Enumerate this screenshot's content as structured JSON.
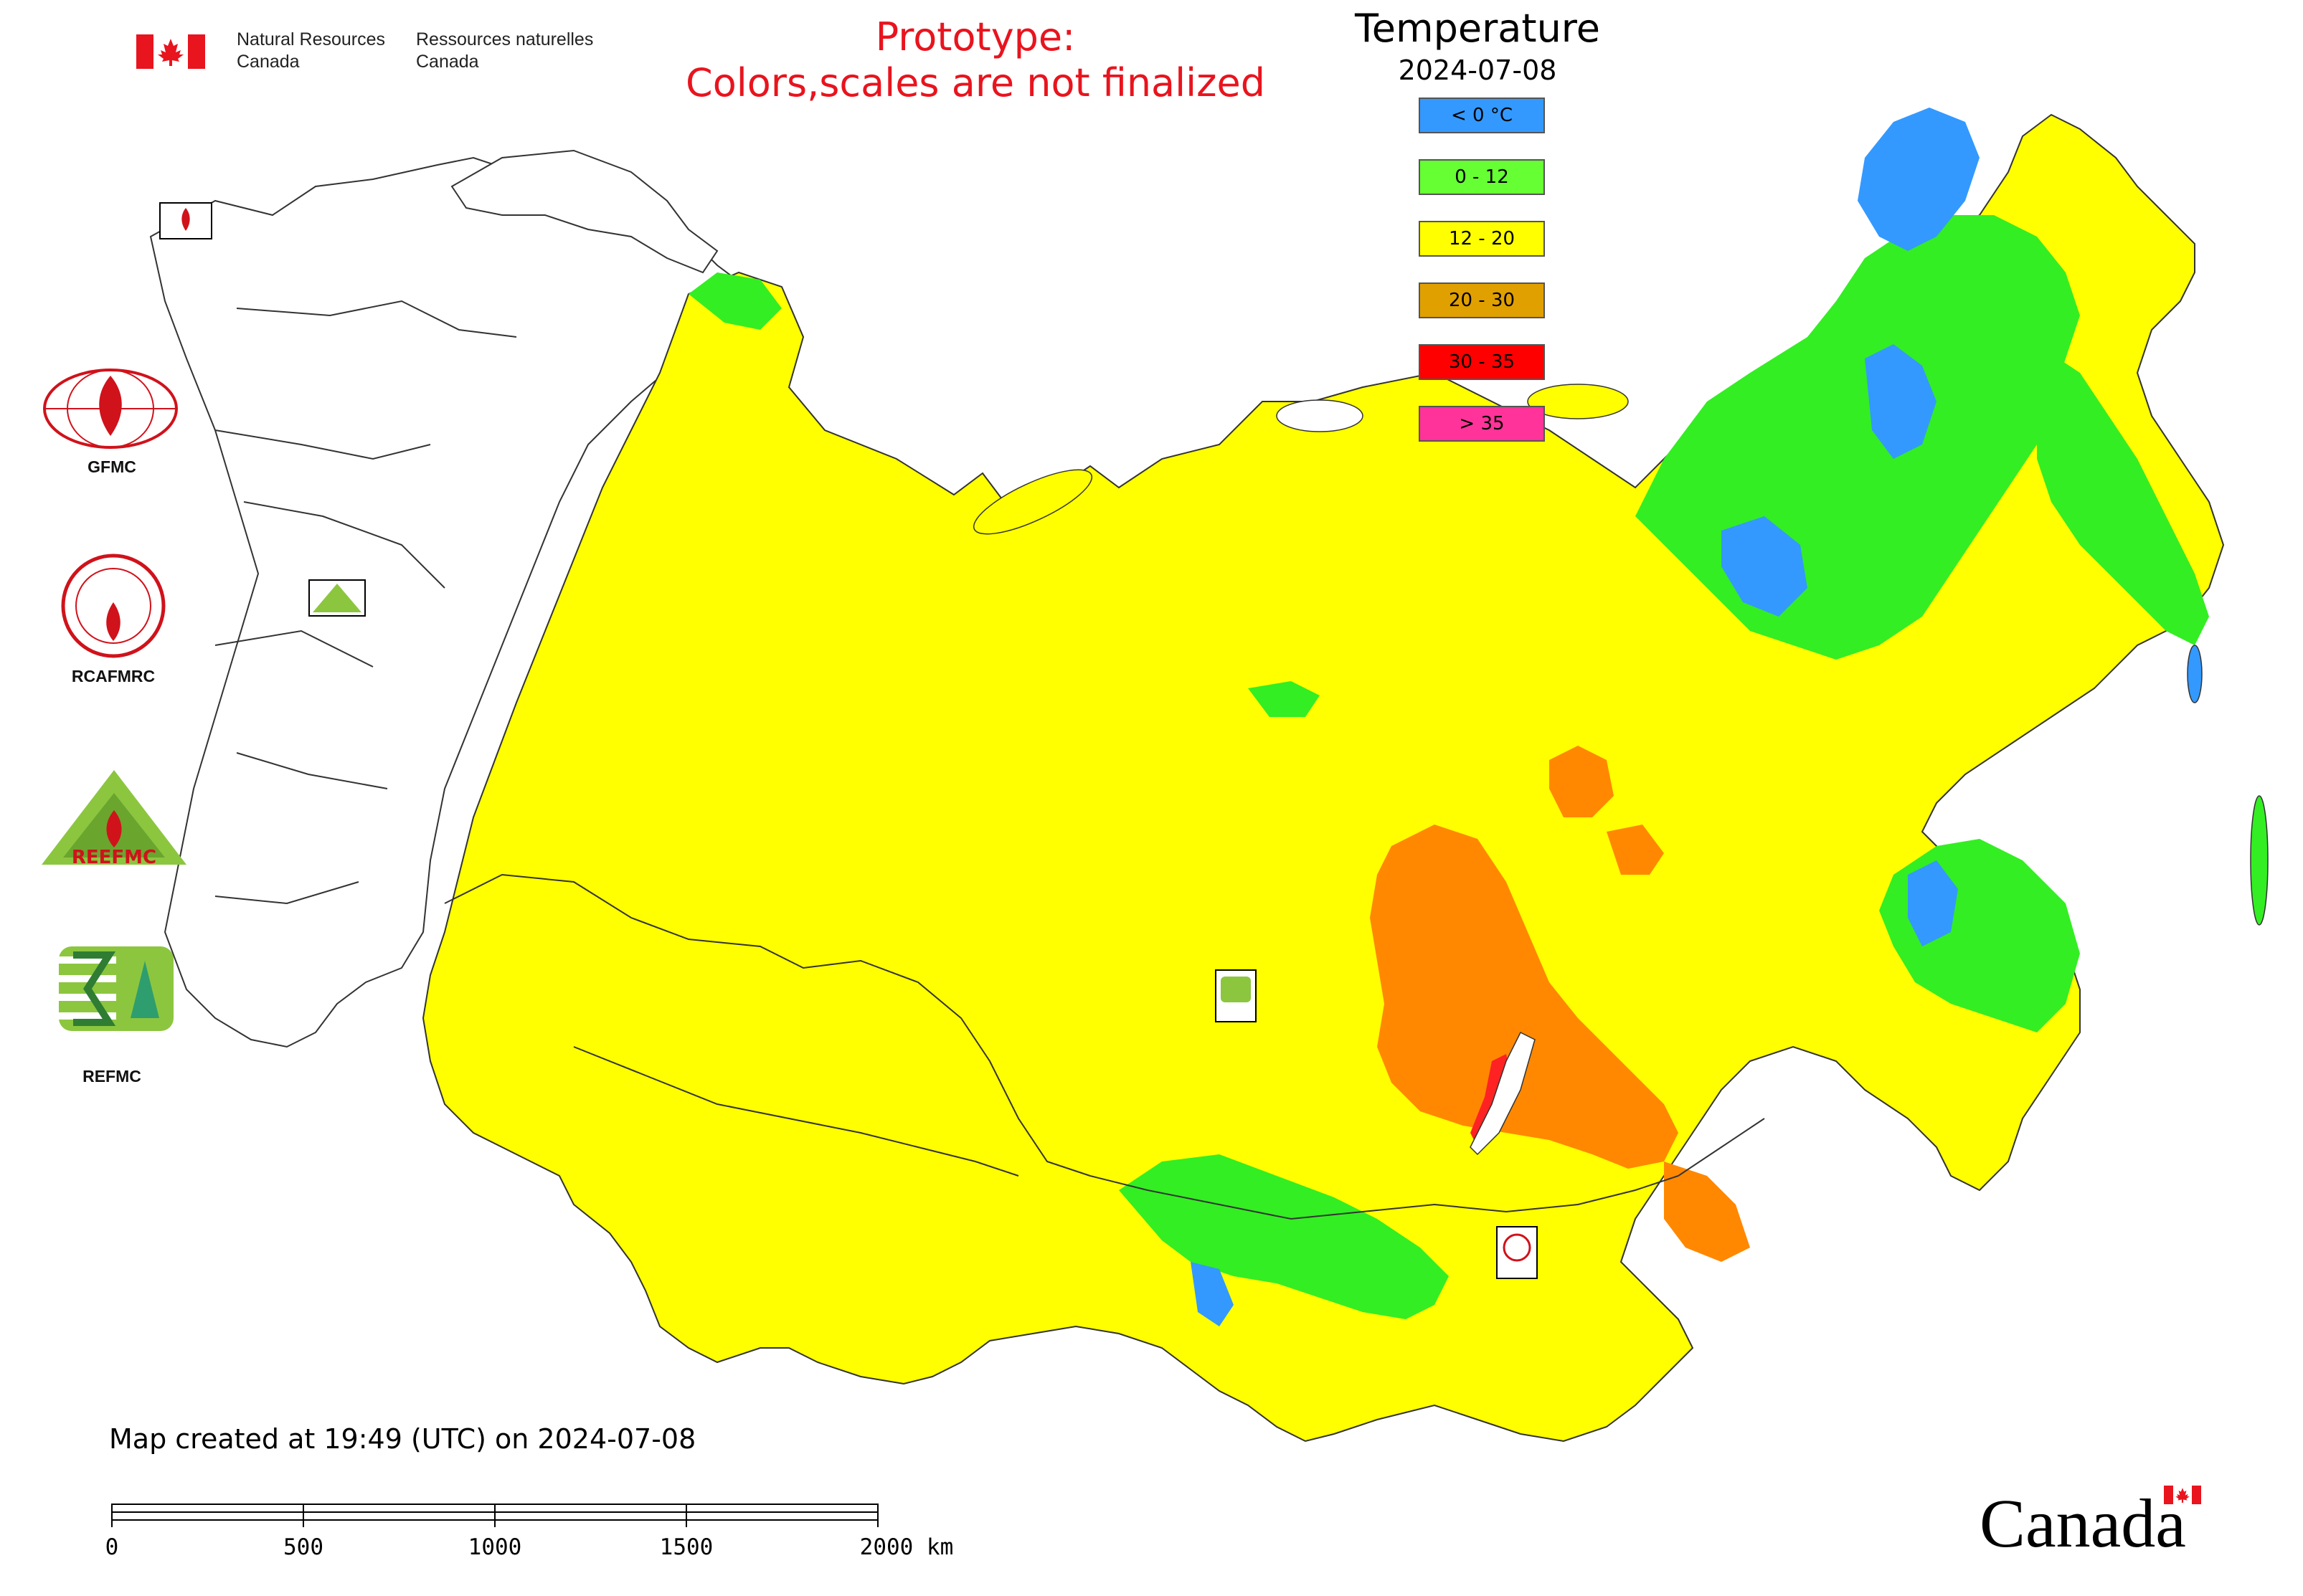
{
  "header": {
    "agency_en_line1": "Natural Resources",
    "agency_en_line2": "Canada",
    "agency_fr_line1": "Ressources naturelles",
    "agency_fr_line2": "Canada"
  },
  "notice": {
    "line1": "Prototype:",
    "line2": "Colors,scales are not finalized"
  },
  "legend": {
    "title": "Temperature",
    "date": "2024-07-08",
    "classes": [
      {
        "label": "< 0 °C",
        "color": "#3399ff"
      },
      {
        "label": "0 - 12",
        "color": "#66ff33"
      },
      {
        "label": "12 - 20",
        "color": "#ffff00"
      },
      {
        "label": "20 - 30",
        "color": "#e0a000"
      },
      {
        "label": "30 - 35",
        "color": "#ff0000"
      },
      {
        "label": "> 35",
        "color": "#ff3399"
      }
    ]
  },
  "logos": {
    "gfmc": "GFMC",
    "rcafmrc": "RCAFMRC",
    "reefmc": "REEFMC",
    "refmc": "REFMC",
    "rcafmrc_ring": "RCAFMRC"
  },
  "map_colors": {
    "cold": "#3399ff",
    "cool": "#33ee22",
    "mild": "#ffff00",
    "warm": "#ff8800",
    "hot": "#ff2222",
    "water": "#ffffff",
    "border": "#333333"
  },
  "footer": {
    "created": "Map created at 19:49 (UTC) on 2024-07-08",
    "scale_ticks": [
      "0",
      "500",
      "1000",
      "1500",
      "2000 km"
    ],
    "wordmark": "Canada"
  }
}
